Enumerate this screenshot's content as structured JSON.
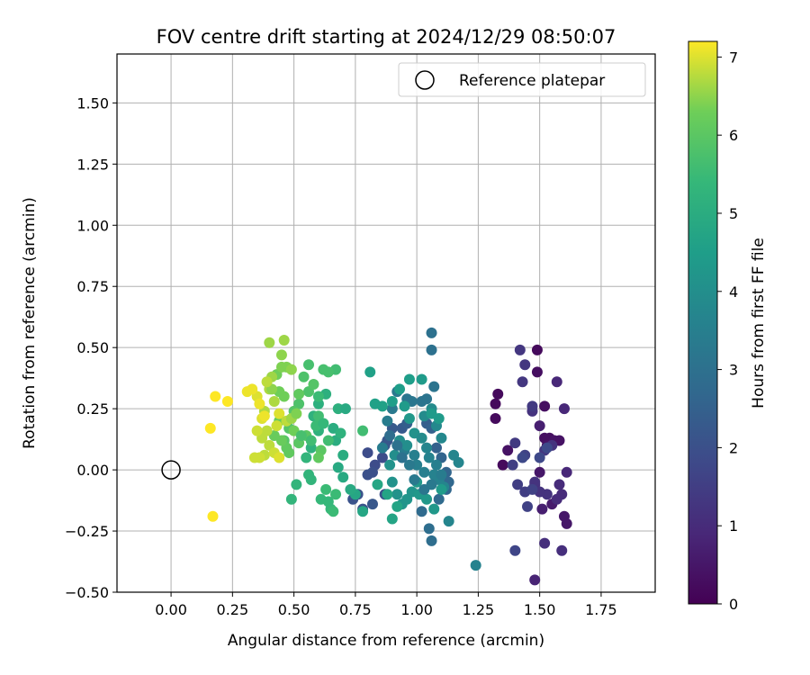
{
  "chart_data": {
    "type": "scatter",
    "title": "FOV centre drift starting at 2024/12/29 08:50:07",
    "xlabel": "Angular distance from reference (arcmin)",
    "ylabel": "Rotation from reference (arcmin)",
    "xlim": [
      -0.22,
      1.97
    ],
    "ylim": [
      -0.5,
      1.7
    ],
    "x_ticks": [
      "0.00",
      "0.25",
      "0.50",
      "0.75",
      "1.00",
      "1.25",
      "1.50",
      "1.75"
    ],
    "x_tick_values": [
      0,
      0.25,
      0.5,
      0.75,
      1.0,
      1.25,
      1.5,
      1.75
    ],
    "y_ticks": [
      "−0.50",
      "−0.25",
      "0.00",
      "0.25",
      "0.50",
      "0.75",
      "1.00",
      "1.25",
      "1.50"
    ],
    "y_tick_values": [
      -0.5,
      -0.25,
      0,
      0.25,
      0.5,
      0.75,
      1.0,
      1.25,
      1.5
    ],
    "grid": true,
    "legend": {
      "position": "top-right",
      "entries": [
        "Reference platepar"
      ]
    },
    "reference_point": {
      "x": 0,
      "y": 0,
      "label": "Reference platepar"
    },
    "colorbar": {
      "label": "Hours from first FF file",
      "min": 0,
      "max": 7.2,
      "ticks": [
        "0",
        "1",
        "2",
        "3",
        "4",
        "5",
        "6",
        "7"
      ],
      "tick_values": [
        0,
        1,
        2,
        3,
        4,
        5,
        6,
        7
      ],
      "colormap": "viridis"
    },
    "points": [
      [
        1.33,
        0.31,
        0.2
      ],
      [
        1.32,
        0.27,
        0.2
      ],
      [
        1.32,
        0.21,
        0.2
      ],
      [
        1.35,
        0.02,
        0.2
      ],
      [
        1.49,
        0.49,
        0.2
      ],
      [
        1.49,
        0.4,
        0.3
      ],
      [
        1.52,
        0.26,
        0.3
      ],
      [
        1.37,
        0.08,
        0.4
      ],
      [
        1.52,
        0.13,
        0.3
      ],
      [
        1.54,
        0.13,
        0.3
      ],
      [
        1.56,
        0.12,
        0.4
      ],
      [
        1.58,
        0.12,
        0.4
      ],
      [
        1.53,
        0.1,
        0.4
      ],
      [
        1.5,
        -0.01,
        0.5
      ],
      [
        1.6,
        -0.19,
        0.5
      ],
      [
        1.61,
        -0.22,
        0.5
      ],
      [
        1.55,
        -0.14,
        0.6
      ],
      [
        1.51,
        -0.16,
        0.7
      ],
      [
        1.5,
        0.18,
        0.7
      ],
      [
        1.48,
        -0.45,
        0.8
      ],
      [
        1.57,
        0.36,
        0.9
      ],
      [
        1.6,
        0.25,
        0.9
      ],
      [
        1.61,
        -0.01,
        0.9
      ],
      [
        1.58,
        -0.06,
        1.0
      ],
      [
        1.59,
        -0.1,
        1.0
      ],
      [
        1.57,
        -0.12,
        1.0
      ],
      [
        1.59,
        -0.33,
        1.1
      ],
      [
        1.52,
        -0.3,
        1.1
      ],
      [
        1.48,
        -0.06,
        1.1
      ],
      [
        1.48,
        -0.05,
        1.2
      ],
      [
        1.53,
        -0.1,
        1.2
      ],
      [
        1.5,
        -0.09,
        1.2
      ],
      [
        1.55,
        0.1,
        1.2
      ],
      [
        1.52,
        0.08,
        1.3
      ],
      [
        1.47,
        0.24,
        1.2
      ],
      [
        1.42,
        0.49,
        1.3
      ],
      [
        1.44,
        0.43,
        1.3
      ],
      [
        1.43,
        0.36,
        1.3
      ],
      [
        1.47,
        0.26,
        1.4
      ],
      [
        1.4,
        0.11,
        1.4
      ],
      [
        1.39,
        0.02,
        1.5
      ],
      [
        1.41,
        -0.06,
        1.5
      ],
      [
        1.44,
        -0.09,
        1.5
      ],
      [
        1.47,
        -0.08,
        1.6
      ],
      [
        1.45,
        -0.15,
        1.6
      ],
      [
        1.4,
        -0.33,
        1.7
      ],
      [
        1.44,
        0.06,
        1.6
      ],
      [
        1.43,
        0.05,
        1.8
      ],
      [
        1.5,
        0.05,
        1.8
      ],
      [
        1.53,
        0.09,
        1.8
      ],
      [
        0.8,
        0.07,
        1.9
      ],
      [
        0.83,
        0.02,
        1.9
      ],
      [
        0.86,
        0.05,
        1.9
      ],
      [
        0.87,
        -0.1,
        2.0
      ],
      [
        0.82,
        -0.01,
        2.0
      ],
      [
        0.8,
        -0.02,
        2.0
      ],
      [
        0.78,
        -0.16,
        2.1
      ],
      [
        0.76,
        -0.1,
        2.1
      ],
      [
        0.74,
        -0.12,
        2.1
      ],
      [
        0.82,
        -0.14,
        2.2
      ],
      [
        0.87,
        0.1,
        2.2
      ],
      [
        0.88,
        0.12,
        2.2
      ],
      [
        0.9,
        0.17,
        2.3
      ],
      [
        0.94,
        0.17,
        2.3
      ],
      [
        0.96,
        0.19,
        2.4
      ],
      [
        1.04,
        0.19,
        2.4
      ],
      [
        1.06,
        0.17,
        2.5
      ],
      [
        1.08,
        0.09,
        2.5
      ],
      [
        1.1,
        0.05,
        2.6
      ],
      [
        1.12,
        -0.01,
        2.6
      ],
      [
        1.13,
        -0.05,
        2.7
      ],
      [
        1.12,
        -0.08,
        2.7
      ],
      [
        1.09,
        -0.12,
        2.8
      ],
      [
        1.02,
        -0.17,
        2.8
      ],
      [
        1.05,
        -0.24,
        2.9
      ],
      [
        1.06,
        -0.29,
        2.9
      ],
      [
        1.06,
        0.49,
        3.0
      ],
      [
        1.06,
        0.56,
        3.0
      ],
      [
        1.07,
        0.34,
        3.1
      ],
      [
        1.04,
        0.29,
        3.1
      ],
      [
        1.02,
        0.28,
        3.1
      ],
      [
        0.98,
        0.28,
        3.2
      ],
      [
        0.96,
        0.29,
        3.2
      ],
      [
        0.92,
        0.32,
        3.3
      ],
      [
        0.9,
        0.25,
        3.3
      ],
      [
        0.88,
        0.2,
        3.4
      ],
      [
        0.86,
        0.09,
        3.4
      ],
      [
        0.95,
        0.08,
        3.4
      ],
      [
        0.99,
        0.06,
        3.5
      ],
      [
        1.0,
        0.02,
        3.5
      ],
      [
        1.03,
        -0.01,
        3.5
      ],
      [
        1.07,
        -0.02,
        3.6
      ],
      [
        1.09,
        -0.04,
        3.6
      ],
      [
        1.11,
        -0.07,
        3.7
      ],
      [
        1.13,
        -0.21,
        3.7
      ],
      [
        1.24,
        -0.39,
        3.6
      ],
      [
        1.15,
        0.06,
        3.7
      ],
      [
        1.17,
        0.03,
        3.7
      ],
      [
        1.1,
        0.13,
        3.8
      ],
      [
        1.08,
        0.18,
        3.8
      ],
      [
        1.06,
        0.25,
        3.9
      ],
      [
        1.03,
        0.22,
        3.9
      ],
      [
        0.96,
        0.1,
        4.0
      ],
      [
        0.93,
        0.12,
        4.0
      ],
      [
        0.91,
        0.06,
        4.0
      ],
      [
        0.89,
        0.02,
        4.1
      ],
      [
        0.9,
        -0.05,
        4.1
      ],
      [
        0.92,
        -0.1,
        4.1
      ],
      [
        0.94,
        -0.14,
        4.2
      ],
      [
        0.96,
        -0.12,
        4.2
      ],
      [
        0.98,
        -0.09,
        4.2
      ],
      [
        1.0,
        -0.05,
        4.3
      ],
      [
        1.01,
        -0.1,
        4.3
      ],
      [
        1.04,
        -0.12,
        4.3
      ],
      [
        1.07,
        -0.16,
        4.3
      ],
      [
        1.1,
        -0.08,
        4.4
      ],
      [
        1.09,
        0.21,
        4.4
      ],
      [
        1.06,
        0.23,
        4.4
      ],
      [
        1.02,
        0.37,
        4.4
      ],
      [
        0.97,
        0.37,
        4.5
      ],
      [
        0.93,
        0.33,
        4.5
      ],
      [
        0.9,
        0.28,
        4.5
      ],
      [
        0.86,
        0.26,
        4.6
      ],
      [
        0.83,
        0.27,
        4.6
      ],
      [
        0.81,
        0.4,
        4.6
      ],
      [
        0.9,
        -0.2,
        4.7
      ],
      [
        0.92,
        -0.15,
        4.7
      ],
      [
        0.88,
        -0.1,
        4.7
      ],
      [
        0.84,
        -0.06,
        4.8
      ],
      [
        0.78,
        -0.17,
        4.8
      ],
      [
        0.75,
        -0.1,
        4.8
      ],
      [
        0.73,
        -0.08,
        4.9
      ],
      [
        0.7,
        -0.03,
        4.9
      ],
      [
        0.68,
        0.01,
        4.9
      ],
      [
        0.7,
        0.06,
        5.0
      ],
      [
        0.67,
        0.12,
        5.0
      ],
      [
        0.66,
        0.17,
        5.0
      ],
      [
        0.68,
        0.25,
        5.1
      ],
      [
        0.63,
        0.31,
        5.1
      ],
      [
        0.6,
        0.27,
        5.1
      ],
      [
        0.58,
        0.22,
        5.2
      ],
      [
        0.6,
        0.16,
        5.2
      ],
      [
        0.57,
        0.09,
        5.2
      ],
      [
        0.55,
        0.05,
        5.3
      ],
      [
        0.56,
        -0.02,
        5.3
      ],
      [
        0.57,
        -0.04,
        5.3
      ],
      [
        0.51,
        -0.06,
        5.3
      ],
      [
        0.49,
        -0.12,
        5.3
      ],
      [
        0.61,
        -0.12,
        5.4
      ],
      [
        0.64,
        -0.13,
        5.4
      ],
      [
        0.65,
        -0.16,
        5.4
      ],
      [
        0.66,
        -0.17,
        5.5
      ],
      [
        0.67,
        -0.1,
        5.5
      ],
      [
        0.63,
        -0.08,
        5.5
      ],
      [
        0.78,
        0.16,
        5.6
      ],
      [
        0.67,
        0.41,
        5.6
      ],
      [
        0.64,
        0.4,
        5.7
      ],
      [
        0.62,
        0.41,
        5.7
      ],
      [
        0.56,
        0.43,
        5.7
      ],
      [
        0.54,
        0.38,
        5.8
      ],
      [
        0.56,
        0.32,
        5.8
      ],
      [
        0.52,
        0.27,
        5.8
      ],
      [
        0.5,
        0.24,
        5.9
      ],
      [
        0.48,
        0.17,
        5.9
      ],
      [
        0.46,
        0.12,
        5.9
      ],
      [
        0.52,
        0.11,
        6.0
      ],
      [
        0.55,
        0.14,
        6.0
      ],
      [
        0.61,
        0.08,
        6.0
      ],
      [
        0.6,
        0.05,
        6.1
      ],
      [
        0.48,
        0.07,
        6.1
      ],
      [
        0.47,
        0.09,
        6.1
      ],
      [
        0.45,
        0.12,
        6.2
      ],
      [
        0.42,
        0.14,
        6.2
      ],
      [
        0.44,
        0.2,
        6.2
      ],
      [
        0.46,
        0.3,
        6.3
      ],
      [
        0.44,
        0.32,
        6.3
      ],
      [
        0.43,
        0.39,
        6.3
      ],
      [
        0.45,
        0.42,
        6.4
      ],
      [
        0.47,
        0.42,
        6.4
      ],
      [
        0.49,
        0.41,
        6.5
      ],
      [
        0.45,
        0.47,
        6.5
      ],
      [
        0.4,
        0.52,
        6.6
      ],
      [
        0.46,
        0.53,
        6.6
      ],
      [
        0.41,
        0.38,
        6.6
      ],
      [
        0.4,
        0.33,
        6.7
      ],
      [
        0.42,
        0.28,
        6.7
      ],
      [
        0.38,
        0.24,
        6.7
      ],
      [
        0.39,
        0.16,
        6.8
      ],
      [
        0.4,
        0.1,
        6.8
      ],
      [
        0.38,
        0.06,
        6.8
      ],
      [
        0.36,
        0.05,
        6.9
      ],
      [
        0.34,
        0.05,
        6.9
      ],
      [
        0.42,
        0.07,
        6.9
      ],
      [
        0.44,
        0.05,
        7.0
      ],
      [
        0.37,
        0.21,
        7.0
      ],
      [
        0.35,
        0.3,
        7.0
      ],
      [
        0.33,
        0.33,
        7.1
      ],
      [
        0.31,
        0.32,
        7.1
      ],
      [
        0.36,
        0.27,
        7.1
      ],
      [
        0.38,
        0.22,
        7.1
      ],
      [
        0.23,
        0.28,
        7.2
      ],
      [
        0.18,
        0.3,
        7.2
      ],
      [
        0.16,
        0.17,
        7.2
      ],
      [
        0.17,
        -0.19,
        7.2
      ],
      [
        0.44,
        0.23,
        7.0
      ],
      [
        0.43,
        0.18,
        6.9
      ],
      [
        0.47,
        0.2,
        6.8
      ],
      [
        0.49,
        0.21,
        6.6
      ],
      [
        0.51,
        0.23,
        6.4
      ],
      [
        0.5,
        0.16,
        6.3
      ],
      [
        0.41,
        0.33,
        6.5
      ],
      [
        0.39,
        0.36,
        6.8
      ],
      [
        0.37,
        0.13,
        6.8
      ],
      [
        0.35,
        0.16,
        6.9
      ],
      [
        0.52,
        0.31,
        6.1
      ],
      [
        0.58,
        0.35,
        5.9
      ],
      [
        0.6,
        0.22,
        5.6
      ],
      [
        0.59,
        0.18,
        5.5
      ],
      [
        0.62,
        0.19,
        5.4
      ],
      [
        0.53,
        0.14,
        5.7
      ],
      [
        0.57,
        0.12,
        5.6
      ],
      [
        0.64,
        0.12,
        5.6
      ],
      [
        0.69,
        0.15,
        5.2
      ],
      [
        0.71,
        0.25,
        4.9
      ],
      [
        0.6,
        0.3,
        5.5
      ],
      [
        0.95,
        0.26,
        4.4
      ],
      [
        0.97,
        0.21,
        4.3
      ],
      [
        0.99,
        0.15,
        4.1
      ],
      [
        1.02,
        0.13,
        3.9
      ],
      [
        1.04,
        0.09,
        3.7
      ],
      [
        1.05,
        0.05,
        3.6
      ],
      [
        1.08,
        0.02,
        3.5
      ],
      [
        1.1,
        -0.02,
        3.4
      ],
      [
        1.06,
        -0.06,
        3.3
      ],
      [
        1.03,
        -0.08,
        3.2
      ],
      [
        0.99,
        -0.04,
        3.3
      ],
      [
        0.97,
        0.02,
        3.3
      ],
      [
        0.94,
        0.05,
        3.0
      ],
      [
        0.92,
        0.1,
        3.0
      ],
      [
        0.89,
        0.14,
        2.9
      ]
    ]
  }
}
